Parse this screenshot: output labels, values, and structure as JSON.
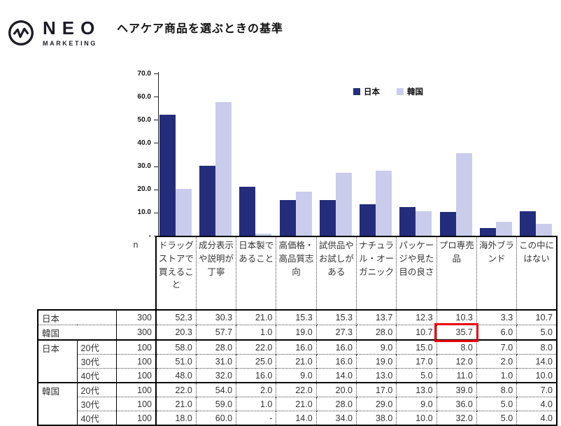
{
  "logo": {
    "name": "NEO",
    "subtitle": "MARKETING"
  },
  "page_title": "ヘアケア商品を選ぶときの基準",
  "colors": {
    "japan": "#242D7C",
    "korea": "#C9CDEB",
    "highlight_box": "#E8000B",
    "table_border": "#000000",
    "text": "#333333"
  },
  "chart_data": {
    "type": "bar",
    "title": "ヘアケア商品を選ぶときの基準",
    "categories": [
      "ドラッグストアで買えること",
      "成分表示や説明が丁寧",
      "日本製であること",
      "高価格・高品質志向",
      "試供品やお試しがある",
      "ナチュラル・オーガニック",
      "パッケージや見た目の良さ",
      "プロ専売品",
      "海外ブランド",
      "この中にはない"
    ],
    "series": [
      {
        "name": "日本",
        "color": "#242D7C",
        "values": [
          52.3,
          30.3,
          21.0,
          15.3,
          15.3,
          13.7,
          12.3,
          10.3,
          3.3,
          10.7
        ]
      },
      {
        "name": "韓国",
        "color": "#C9CDEB",
        "values": [
          20.3,
          57.7,
          1.0,
          19.0,
          27.3,
          28.0,
          10.7,
          35.7,
          6.0,
          5.0
        ]
      }
    ],
    "xlabel": "",
    "ylabel": "",
    "ylim": [
      0,
      70
    ],
    "grid": false,
    "legend_position": "top",
    "yticks": [
      {
        "label": "70.0",
        "value": 70
      },
      {
        "label": "60.0",
        "value": 60
      },
      {
        "label": "50.0",
        "value": 50
      },
      {
        "label": "40.0",
        "value": 40
      },
      {
        "label": "30.0",
        "value": 30
      },
      {
        "label": "20.0",
        "value": 20
      },
      {
        "label": "10.0",
        "value": 10
      },
      {
        "label": "-",
        "value": 0
      }
    ]
  },
  "table": {
    "n_label": "n",
    "columns": [
      "ドラッグストアで買えること",
      "成分表示や説明が丁寧",
      "日本製であること",
      "高価格・高品質志向",
      "試供品やお試しがある",
      "ナチュラル・オーガニック",
      "パッケージや見た目の良さ",
      "プロ専売品",
      "海外ブランド",
      "この中にはない"
    ],
    "rows": [
      {
        "group": "日本",
        "group_rows": 1,
        "group_cols": 2,
        "age": null,
        "n": "300",
        "values": [
          "52.3",
          "30.3",
          "21.0",
          "15.3",
          "15.3",
          "13.7",
          "12.3",
          "10.3",
          "3.3",
          "10.7"
        ],
        "separator_top": "solid"
      },
      {
        "group": "韓国",
        "group_rows": 1,
        "group_cols": 2,
        "age": null,
        "n": "300",
        "values": [
          "20.3",
          "57.7",
          "1.0",
          "19.0",
          "27.3",
          "28.0",
          "10.7",
          "35.7",
          "6.0",
          "5.0"
        ],
        "separator_top": "dotted"
      },
      {
        "group": "日本",
        "group_rows": 3,
        "group_cols": 1,
        "age": "20代",
        "n": "100",
        "values": [
          "58.0",
          "28.0",
          "22.0",
          "16.0",
          "16.0",
          "9.0",
          "15.0",
          "8.0",
          "7.0",
          "8.0"
        ],
        "separator_top": "solid"
      },
      {
        "age": "30代",
        "n": "100",
        "values": [
          "51.0",
          "31.0",
          "25.0",
          "21.0",
          "16.0",
          "19.0",
          "17.0",
          "12.0",
          "2.0",
          "14.0"
        ],
        "separator_top": "dotted"
      },
      {
        "age": "40代",
        "n": "100",
        "values": [
          "48.0",
          "32.0",
          "16.0",
          "9.0",
          "14.0",
          "13.0",
          "5.0",
          "11.0",
          "1.0",
          "10.0"
        ],
        "separator_top": "dotted"
      },
      {
        "group": "韓国",
        "group_rows": 3,
        "group_cols": 1,
        "age": "20代",
        "n": "100",
        "values": [
          "22.0",
          "54.0",
          "2.0",
          "22.0",
          "20.0",
          "17.0",
          "13.0",
          "39.0",
          "8.0",
          "7.0"
        ],
        "separator_top": "solid"
      },
      {
        "age": "30代",
        "n": "100",
        "values": [
          "21.0",
          "59.0",
          "1.0",
          "21.0",
          "28.0",
          "29.0",
          "9.0",
          "36.0",
          "5.0",
          "4.0"
        ],
        "separator_top": "dotted"
      },
      {
        "age": "40代",
        "n": "100",
        "values": [
          "18.0",
          "60.0",
          "-",
          "14.0",
          "34.0",
          "38.0",
          "10.0",
          "32.0",
          "5.0",
          "4.0"
        ],
        "separator_top": "dotted"
      }
    ],
    "highlight_cell": {
      "row_index": 1,
      "column_index": 7,
      "value": "35.7"
    }
  }
}
